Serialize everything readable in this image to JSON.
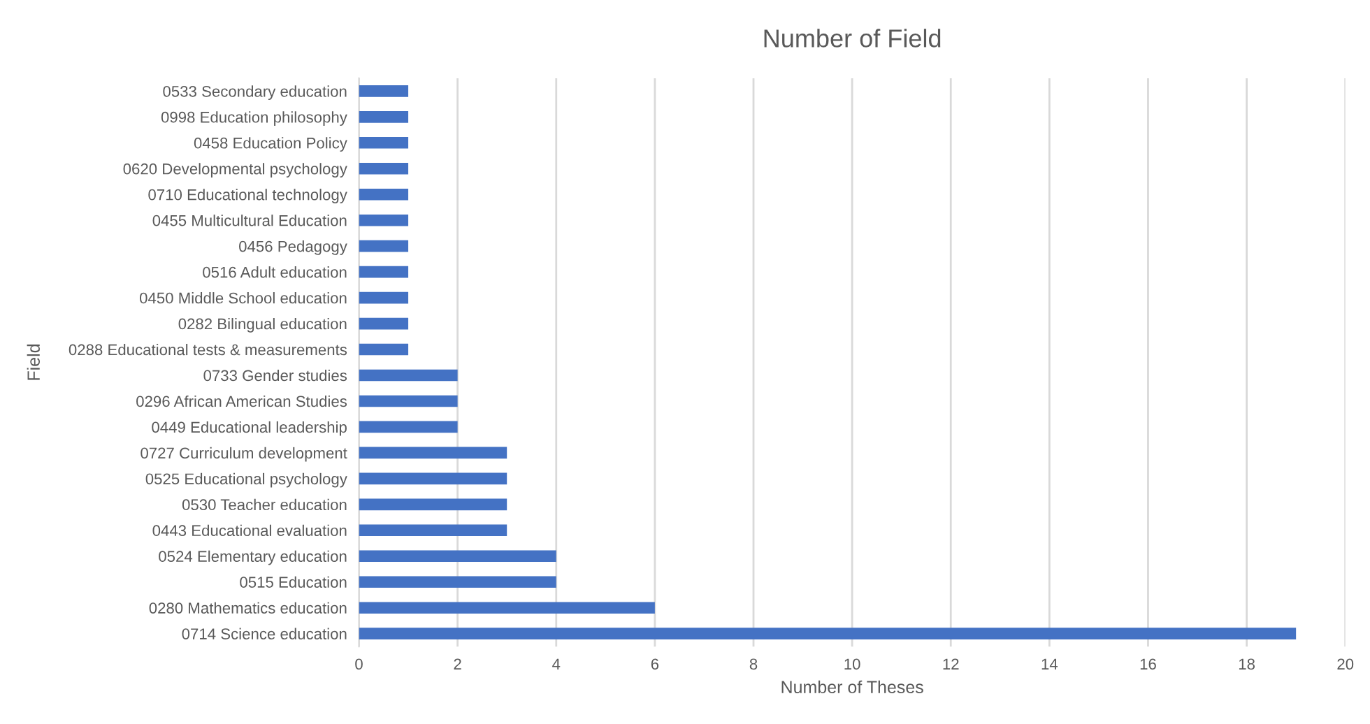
{
  "chart_data": {
    "type": "bar",
    "orientation": "horizontal",
    "title": "Number of Field",
    "xlabel": "Number of Theses",
    "ylabel": "Field",
    "categories": [
      "0533 Secondary education",
      "0998 Education philosophy",
      "0458 Education Policy",
      "0620 Developmental psychology",
      "0710 Educational technology",
      "0455 Multicultural Education",
      "0456 Pedagogy",
      "0516 Adult education",
      "0450 Middle School education",
      "0282 Bilingual education",
      "0288 Educational tests & measurements",
      "0733 Gender studies",
      "0296 African American Studies",
      "0449 Educational leadership",
      "0727 Curriculum development",
      "0525 Educational psychology",
      "0530 Teacher education",
      "0443 Educational evaluation",
      "0524 Elementary education",
      "0515 Education",
      "0280 Mathematics education",
      "0714 Science education"
    ],
    "values": [
      1,
      1,
      1,
      1,
      1,
      1,
      1,
      1,
      1,
      1,
      1,
      2,
      2,
      2,
      3,
      3,
      3,
      3,
      4,
      4,
      6,
      19
    ],
    "color": "#4472c4",
    "xlim": [
      0,
      20
    ],
    "xticks": [
      0,
      2,
      4,
      6,
      8,
      10,
      12,
      14,
      16,
      18,
      20
    ],
    "grid": "x",
    "legend": false
  }
}
